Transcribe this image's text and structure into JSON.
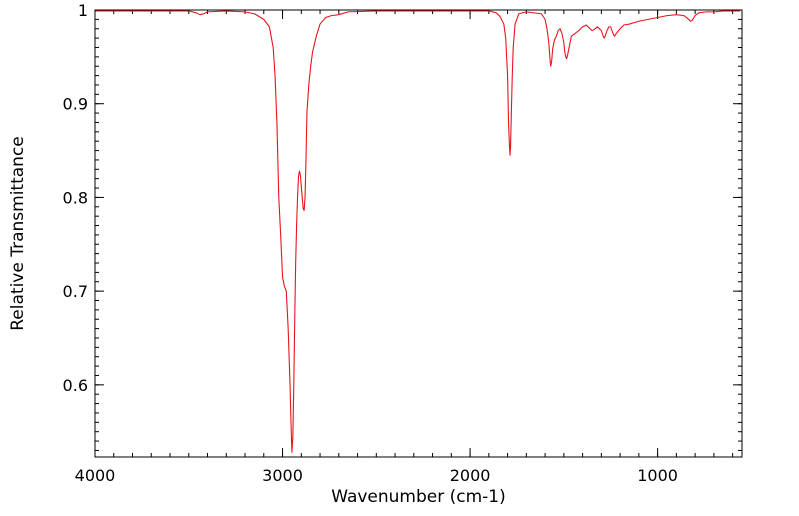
{
  "chart_data": {
    "type": "line",
    "title": "",
    "xlabel": "Wavenumber (cm-1)",
    "ylabel": "Relative Transmittance",
    "xlim": [
      4000,
      550
    ],
    "ylim": [
      0.523,
      1.0
    ],
    "x_reversed": true,
    "grid": false,
    "legend": "none",
    "x_ticks": [
      {
        "value": 4000,
        "label": "4000"
      },
      {
        "value": 3000,
        "label": "3000"
      },
      {
        "value": 2000,
        "label": "2000"
      },
      {
        "value": 1000,
        "label": "1000"
      }
    ],
    "x_minor_step": 100,
    "y_ticks": [
      {
        "value": 1.0,
        "label": "1"
      },
      {
        "value": 0.9,
        "label": "0.9"
      },
      {
        "value": 0.8,
        "label": "0.8"
      },
      {
        "value": 0.7,
        "label": "0.7"
      },
      {
        "value": 0.6,
        "label": "0.6"
      }
    ],
    "y_minor_step": 0.01,
    "series": [
      {
        "color": "#e8141c",
        "points": [
          [
            4000,
            0.999
          ],
          [
            3700,
            0.999
          ],
          [
            3500,
            0.999
          ],
          [
            3460,
            0.997
          ],
          [
            3440,
            0.995
          ],
          [
            3420,
            0.996
          ],
          [
            3400,
            0.998
          ],
          [
            3300,
            0.999
          ],
          [
            3200,
            0.998
          ],
          [
            3150,
            0.996
          ],
          [
            3100,
            0.99
          ],
          [
            3070,
            0.982
          ],
          [
            3050,
            0.96
          ],
          [
            3040,
            0.93
          ],
          [
            3030,
            0.88
          ],
          [
            3020,
            0.8
          ],
          [
            3010,
            0.76
          ],
          [
            3000,
            0.715
          ],
          [
            2990,
            0.705
          ],
          [
            2980,
            0.7
          ],
          [
            2970,
            0.66
          ],
          [
            2960,
            0.6
          ],
          [
            2955,
            0.56
          ],
          [
            2950,
            0.528
          ],
          [
            2945,
            0.545
          ],
          [
            2940,
            0.6
          ],
          [
            2935,
            0.67
          ],
          [
            2930,
            0.73
          ],
          [
            2925,
            0.77
          ],
          [
            2920,
            0.8
          ],
          [
            2915,
            0.822
          ],
          [
            2910,
            0.828
          ],
          [
            2905,
            0.824
          ],
          [
            2900,
            0.812
          ],
          [
            2895,
            0.8
          ],
          [
            2890,
            0.788
          ],
          [
            2885,
            0.786
          ],
          [
            2880,
            0.8
          ],
          [
            2875,
            0.84
          ],
          [
            2870,
            0.89
          ],
          [
            2860,
            0.92
          ],
          [
            2850,
            0.94
          ],
          [
            2840,
            0.955
          ],
          [
            2820,
            0.972
          ],
          [
            2800,
            0.985
          ],
          [
            2770,
            0.992
          ],
          [
            2740,
            0.994
          ],
          [
            2700,
            0.995
          ],
          [
            2650,
            0.998
          ],
          [
            2500,
            0.999
          ],
          [
            2200,
            0.999
          ],
          [
            1900,
            0.999
          ],
          [
            1860,
            0.997
          ],
          [
            1840,
            0.993
          ],
          [
            1820,
            0.985
          ],
          [
            1810,
            0.97
          ],
          [
            1800,
            0.93
          ],
          [
            1795,
            0.88
          ],
          [
            1790,
            0.855
          ],
          [
            1787,
            0.845
          ],
          [
            1784,
            0.855
          ],
          [
            1780,
            0.89
          ],
          [
            1775,
            0.93
          ],
          [
            1770,
            0.96
          ],
          [
            1760,
            0.985
          ],
          [
            1740,
            0.996
          ],
          [
            1700,
            0.998
          ],
          [
            1620,
            0.996
          ],
          [
            1600,
            0.99
          ],
          [
            1590,
            0.98
          ],
          [
            1580,
            0.965
          ],
          [
            1575,
            0.95
          ],
          [
            1570,
            0.94
          ],
          [
            1565,
            0.945
          ],
          [
            1560,
            0.958
          ],
          [
            1550,
            0.968
          ],
          [
            1540,
            0.972
          ],
          [
            1530,
            0.978
          ],
          [
            1520,
            0.98
          ],
          [
            1510,
            0.975
          ],
          [
            1500,
            0.965
          ],
          [
            1495,
            0.955
          ],
          [
            1490,
            0.95
          ],
          [
            1485,
            0.948
          ],
          [
            1480,
            0.952
          ],
          [
            1470,
            0.962
          ],
          [
            1460,
            0.972
          ],
          [
            1440,
            0.975
          ],
          [
            1420,
            0.978
          ],
          [
            1400,
            0.982
          ],
          [
            1380,
            0.984
          ],
          [
            1360,
            0.98
          ],
          [
            1350,
            0.978
          ],
          [
            1340,
            0.979
          ],
          [
            1320,
            0.982
          ],
          [
            1300,
            0.978
          ],
          [
            1290,
            0.972
          ],
          [
            1285,
            0.97
          ],
          [
            1280,
            0.972
          ],
          [
            1270,
            0.978
          ],
          [
            1260,
            0.982
          ],
          [
            1250,
            0.982
          ],
          [
            1240,
            0.976
          ],
          [
            1230,
            0.972
          ],
          [
            1220,
            0.975
          ],
          [
            1200,
            0.98
          ],
          [
            1180,
            0.984
          ],
          [
            1150,
            0.985
          ],
          [
            1100,
            0.988
          ],
          [
            1000,
            0.992
          ],
          [
            950,
            0.994
          ],
          [
            900,
            0.995
          ],
          [
            860,
            0.994
          ],
          [
            840,
            0.991
          ],
          [
            825,
            0.988
          ],
          [
            815,
            0.989
          ],
          [
            800,
            0.994
          ],
          [
            780,
            0.997
          ],
          [
            740,
            0.998
          ],
          [
            700,
            0.998
          ],
          [
            650,
            0.999
          ],
          [
            600,
            0.999
          ],
          [
            560,
            0.999
          ]
        ]
      }
    ]
  }
}
